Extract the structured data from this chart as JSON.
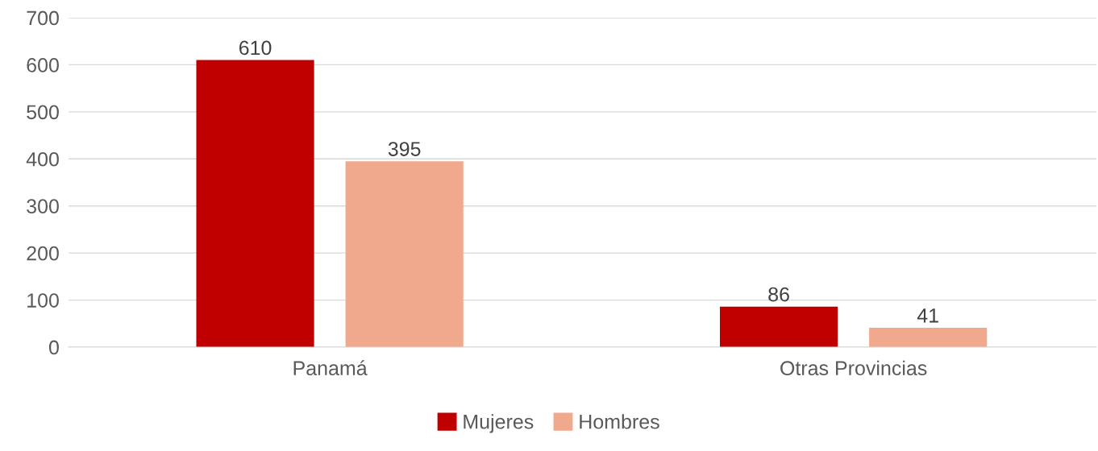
{
  "chart_data": {
    "type": "bar",
    "categories": [
      "Panamá",
      "Otras Provincias"
    ],
    "series": [
      {
        "name": "Mujeres",
        "color": "#c00000",
        "values": [
          610,
          86
        ]
      },
      {
        "name": "Hombres",
        "color": "#f0a98c",
        "values": [
          395,
          41
        ]
      }
    ],
    "ylim": [
      0,
      700
    ],
    "yticks": [
      0,
      100,
      200,
      300,
      400,
      500,
      600,
      700
    ],
    "grid": "y",
    "legend": "bottom",
    "data_labels": true
  }
}
